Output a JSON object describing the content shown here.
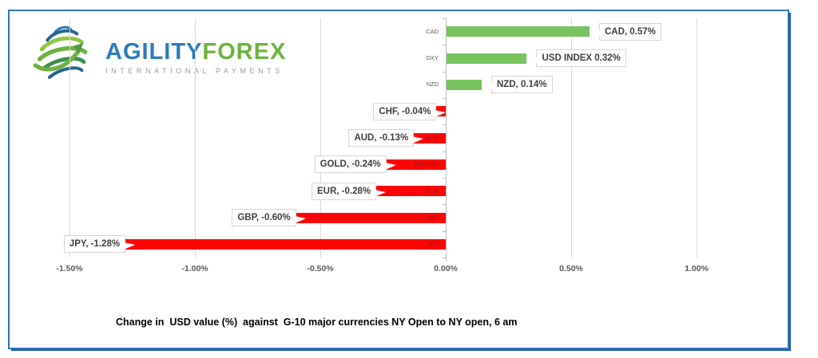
{
  "logo": {
    "brand_primary": "AGILITY",
    "brand_secondary": "FOREX",
    "tagline": "INTERNATIONAL PAYMENTS"
  },
  "chart_data": {
    "type": "bar",
    "orientation": "horizontal",
    "title": "Change in  USD value (%)  against  G-10 major currencies NY Open to NY open, 6 am",
    "categories": [
      "CAD",
      "DXY",
      "NZD",
      "CHF",
      "AUD",
      "XAUUSD",
      "EUR",
      "GBP",
      "JPY"
    ],
    "values": [
      0.57,
      0.32,
      0.14,
      -0.04,
      -0.13,
      -0.24,
      -0.28,
      -0.6,
      -1.28
    ],
    "data_labels": [
      "CAD, 0.57%",
      "USD INDEX 0.32%",
      "NZD, 0.14%",
      "CHF, -0.04%",
      "AUD, -0.13%",
      "GOLD, -0.24%",
      "EUR, -0.28%",
      "GBP, -0.60%",
      "JPY, -1.28%"
    ],
    "x_tick_labels": [
      "-1.50%",
      "-1.00%",
      "-0.50%",
      "0.00%",
      "0.50%",
      "1.00%"
    ],
    "x_tick_values": [
      -1.5,
      -1.0,
      -0.5,
      0.0,
      0.5,
      1.0
    ],
    "xlim": [
      -1.5,
      1.0
    ],
    "grid": true,
    "legend": "none",
    "positive_color": "#77C45D",
    "negative_color": "#FE0505",
    "gridline_color": "#D9D9D9",
    "axis_color": "#BFBFBF",
    "frame_color": "#2E75B6"
  }
}
